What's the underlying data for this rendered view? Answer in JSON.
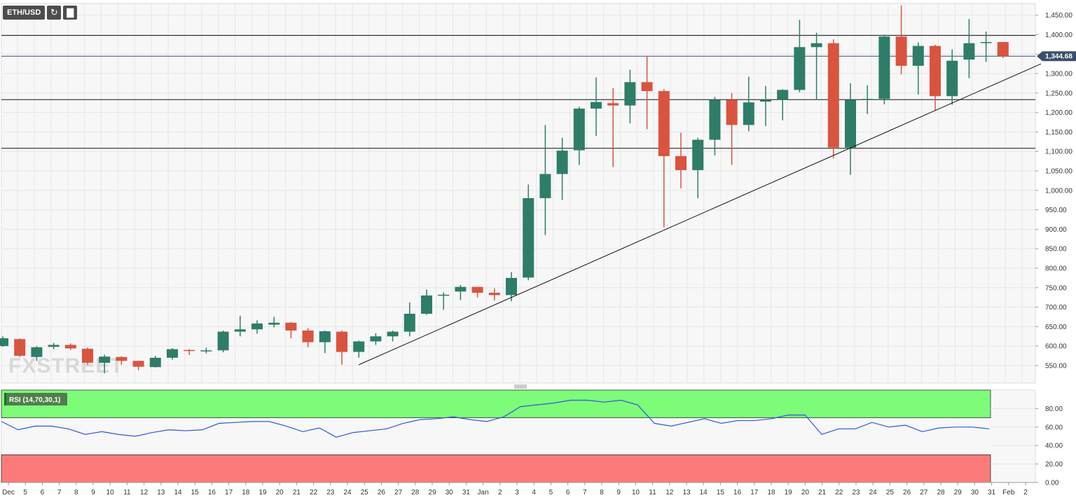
{
  "toolbar": {
    "symbol": "ETH/USD",
    "refresh_icon": "refresh-icon",
    "chart_type_icon": "bar-chart-icon"
  },
  "watermark": "FXSTREET",
  "price_label": "1,344.68",
  "rsi_label": "RSI (14,70,30,1)",
  "colors": {
    "up": "#2e7d68",
    "down": "#d9543f",
    "rsi_line": "#3355dd",
    "overbought": "#7dfc7a",
    "oversold": "#fb7a7a",
    "price_tag": "#3a4e6b"
  },
  "chart_data": [
    {
      "type": "candlestick",
      "title": "ETH/USD",
      "x_tick_labels": [
        "Dec",
        "5",
        "6",
        "7",
        "8",
        "9",
        "10",
        "11",
        "12",
        "13",
        "14",
        "15",
        "16",
        "17",
        "18",
        "19",
        "20",
        "21",
        "22",
        "23",
        "24",
        "25",
        "26",
        "27",
        "28",
        "29",
        "30",
        "31",
        "Jan",
        "2",
        "3",
        "4",
        "5",
        "6",
        "7",
        "8",
        "9",
        "10",
        "11",
        "12",
        "13",
        "14",
        "15",
        "16",
        "17",
        "18",
        "19",
        "20",
        "21",
        "22",
        "23",
        "24",
        "25",
        "26",
        "27",
        "28",
        "29",
        "30",
        "31",
        "Feb",
        "2"
      ],
      "y_tick_labels": [
        "550.00",
        "600.00",
        "650.00",
        "700.00",
        "750.00",
        "800.00",
        "850.00",
        "900.00",
        "950.00",
        "1,000.00",
        "1,050.00",
        "1,100.00",
        "1,150.00",
        "1,200.00",
        "1,250.00",
        "1,300.00",
        "1,350.00",
        "1,400.00",
        "1,450.00"
      ],
      "ylim": [
        505,
        1480
      ],
      "current_price": 1344.68,
      "horizontal_levels": [
        1398,
        1233,
        1108
      ],
      "trendline": {
        "start": [
          "Dec 24",
          552
        ],
        "end": [
          "Feb 2",
          1325
        ]
      },
      "candles": [
        {
          "x": "Dec 4",
          "o": 600,
          "h": 625,
          "l": 598,
          "c": 620
        },
        {
          "x": "Dec 4b",
          "o": 618,
          "h": 620,
          "l": 572,
          "c": 575
        },
        {
          "x": "Dec 5",
          "o": 572,
          "h": 600,
          "l": 562,
          "c": 597
        },
        {
          "x": "Dec 6",
          "o": 598,
          "h": 608,
          "l": 592,
          "c": 603
        },
        {
          "x": "Dec 7",
          "o": 603,
          "h": 607,
          "l": 590,
          "c": 594
        },
        {
          "x": "Dec 8",
          "o": 593,
          "h": 596,
          "l": 552,
          "c": 557
        },
        {
          "x": "Dec 9",
          "o": 557,
          "h": 578,
          "l": 530,
          "c": 573
        },
        {
          "x": "Dec 10",
          "o": 572,
          "h": 574,
          "l": 552,
          "c": 562
        },
        {
          "x": "Dec 11",
          "o": 562,
          "h": 562,
          "l": 538,
          "c": 547
        },
        {
          "x": "Dec 12",
          "o": 546,
          "h": 575,
          "l": 545,
          "c": 570
        },
        {
          "x": "Dec 13",
          "o": 570,
          "h": 595,
          "l": 565,
          "c": 592
        },
        {
          "x": "Dec 14",
          "o": 590,
          "h": 592,
          "l": 577,
          "c": 588
        },
        {
          "x": "Dec 15",
          "o": 587,
          "h": 596,
          "l": 581,
          "c": 589
        },
        {
          "x": "Dec 16",
          "o": 589,
          "h": 640,
          "l": 584,
          "c": 637
        },
        {
          "x": "Dec 17",
          "o": 637,
          "h": 678,
          "l": 625,
          "c": 643
        },
        {
          "x": "Dec 18",
          "o": 643,
          "h": 666,
          "l": 632,
          "c": 658
        },
        {
          "x": "Dec 19",
          "o": 655,
          "h": 675,
          "l": 648,
          "c": 660
        },
        {
          "x": "Dec 20",
          "o": 660,
          "h": 662,
          "l": 620,
          "c": 640
        },
        {
          "x": "Dec 21",
          "o": 640,
          "h": 646,
          "l": 597,
          "c": 610
        },
        {
          "x": "Dec 22",
          "o": 610,
          "h": 640,
          "l": 582,
          "c": 638
        },
        {
          "x": "Dec 23",
          "o": 637,
          "h": 640,
          "l": 552,
          "c": 585
        },
        {
          "x": "Dec 24",
          "o": 585,
          "h": 614,
          "l": 570,
          "c": 612
        },
        {
          "x": "Dec 25",
          "o": 612,
          "h": 633,
          "l": 603,
          "c": 625
        },
        {
          "x": "Dec 26",
          "o": 625,
          "h": 640,
          "l": 612,
          "c": 637
        },
        {
          "x": "Dec 27",
          "o": 637,
          "h": 712,
          "l": 625,
          "c": 683
        },
        {
          "x": "Dec 28",
          "o": 683,
          "h": 745,
          "l": 680,
          "c": 730
        },
        {
          "x": "Dec 29",
          "o": 730,
          "h": 738,
          "l": 693,
          "c": 732
        },
        {
          "x": "Dec 30",
          "o": 740,
          "h": 757,
          "l": 718,
          "c": 752
        },
        {
          "x": "Dec 31",
          "o": 752,
          "h": 752,
          "l": 725,
          "c": 737
        },
        {
          "x": "Jan 1",
          "o": 737,
          "h": 748,
          "l": 717,
          "c": 731
        },
        {
          "x": "Jan 2",
          "o": 731,
          "h": 790,
          "l": 715,
          "c": 775
        },
        {
          "x": "Jan 3",
          "o": 776,
          "h": 1015,
          "l": 769,
          "c": 980
        },
        {
          "x": "Jan 4",
          "o": 980,
          "h": 1168,
          "l": 885,
          "c": 1042
        },
        {
          "x": "Jan 5",
          "o": 1042,
          "h": 1135,
          "l": 975,
          "c": 1102
        },
        {
          "x": "Jan 6",
          "o": 1103,
          "h": 1215,
          "l": 1065,
          "c": 1210
        },
        {
          "x": "Jan 7",
          "o": 1210,
          "h": 1290,
          "l": 1140,
          "c": 1227
        },
        {
          "x": "Jan 8",
          "o": 1224,
          "h": 1263,
          "l": 1060,
          "c": 1218
        },
        {
          "x": "Jan 9",
          "o": 1218,
          "h": 1310,
          "l": 1172,
          "c": 1278
        },
        {
          "x": "Jan 10",
          "o": 1278,
          "h": 1345,
          "l": 1157,
          "c": 1255
        },
        {
          "x": "Jan 11",
          "o": 1255,
          "h": 1260,
          "l": 905,
          "c": 1088
        },
        {
          "x": "Jan 12",
          "o": 1088,
          "h": 1148,
          "l": 1005,
          "c": 1052
        },
        {
          "x": "Jan 13",
          "o": 1052,
          "h": 1135,
          "l": 980,
          "c": 1130
        },
        {
          "x": "Jan 14",
          "o": 1130,
          "h": 1240,
          "l": 1090,
          "c": 1232
        },
        {
          "x": "Jan 15",
          "o": 1232,
          "h": 1250,
          "l": 1065,
          "c": 1168
        },
        {
          "x": "Jan 16",
          "o": 1168,
          "h": 1292,
          "l": 1152,
          "c": 1226
        },
        {
          "x": "Jan 17",
          "o": 1228,
          "h": 1268,
          "l": 1165,
          "c": 1232
        },
        {
          "x": "Jan 18",
          "o": 1232,
          "h": 1260,
          "l": 1180,
          "c": 1258
        },
        {
          "x": "Jan 19",
          "o": 1258,
          "h": 1438,
          "l": 1252,
          "c": 1368
        },
        {
          "x": "Jan 20",
          "o": 1368,
          "h": 1405,
          "l": 1232,
          "c": 1378
        },
        {
          "x": "Jan 21",
          "o": 1378,
          "h": 1388,
          "l": 1082,
          "c": 1110
        },
        {
          "x": "Jan 22",
          "o": 1110,
          "h": 1275,
          "l": 1040,
          "c": 1232
        },
        {
          "x": "Jan 23",
          "o": 1232,
          "h": 1270,
          "l": 1196,
          "c": 1235
        },
        {
          "x": "Jan 24",
          "o": 1235,
          "h": 1400,
          "l": 1221,
          "c": 1395
        },
        {
          "x": "Jan 25",
          "o": 1395,
          "h": 1475,
          "l": 1298,
          "c": 1320
        },
        {
          "x": "Jan 26",
          "o": 1320,
          "h": 1380,
          "l": 1246,
          "c": 1371
        },
        {
          "x": "Jan 27",
          "o": 1371,
          "h": 1374,
          "l": 1205,
          "c": 1242
        },
        {
          "x": "Jan 28",
          "o": 1242,
          "h": 1362,
          "l": 1220,
          "c": 1333
        },
        {
          "x": "Jan 29",
          "o": 1336,
          "h": 1440,
          "l": 1288,
          "c": 1378
        },
        {
          "x": "Jan 30",
          "o": 1380,
          "h": 1408,
          "l": 1330,
          "c": 1381
        },
        {
          "x": "Jan 31",
          "o": 1381,
          "h": 1381,
          "l": 1340,
          "c": 1344.68
        }
      ]
    },
    {
      "type": "line",
      "title": "RSI (14,70,30,1)",
      "y_tick_labels": [
        "0.00",
        "20.00",
        "40.00",
        "60.00",
        "80.00"
      ],
      "ylim": [
        0,
        100
      ],
      "overbought": 70,
      "oversold": 30,
      "values": [
        66,
        57,
        61,
        61,
        58,
        52,
        55,
        52,
        50,
        54,
        57,
        56,
        57,
        64,
        65,
        66,
        66,
        61,
        55,
        59,
        49,
        54,
        56,
        58,
        64,
        68,
        69,
        71,
        68,
        66,
        71,
        82,
        84,
        86,
        89,
        89,
        87,
        89,
        84,
        64,
        61,
        65,
        69,
        64,
        67,
        67,
        69,
        73,
        73,
        52,
        58,
        58,
        65,
        60,
        62,
        55,
        59,
        60,
        60,
        58
      ]
    }
  ]
}
